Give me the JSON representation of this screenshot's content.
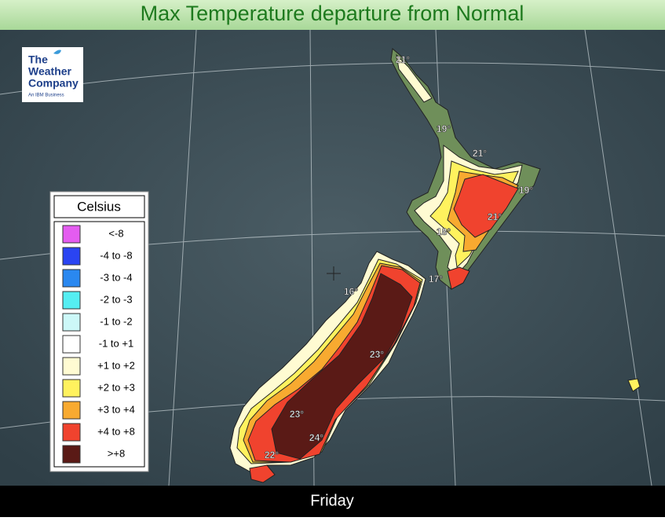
{
  "header": {
    "title": "Max Temperature departure from Normal"
  },
  "logo": {
    "line1": "The",
    "line2": "Weather",
    "line3": "Company",
    "tagline": "An IBM Business"
  },
  "legend": {
    "title": "Celsius",
    "items": [
      {
        "label": "<-8",
        "color": "#e45cf0"
      },
      {
        "label": "-4 to -8",
        "color": "#2a44f2"
      },
      {
        "label": "-3 to -4",
        "color": "#2a88f0"
      },
      {
        "label": "-2 to -3",
        "color": "#55eef2"
      },
      {
        "label": "-1 to -2",
        "color": "#ccf8f8"
      },
      {
        "label": "-1 to +1",
        "color": "#ffffff"
      },
      {
        "label": "+1 to +2",
        "color": "#fffbd2"
      },
      {
        "label": "+2 to +3",
        "color": "#fff25e"
      },
      {
        "label": "+3 to +4",
        "color": "#f8aa30"
      },
      {
        "label": "+4 to +8",
        "color": "#f0432e"
      },
      {
        "label": ">+8",
        "color": "#5a1a16"
      }
    ]
  },
  "map_labels": [
    "21°",
    "19°",
    "21°",
    "19°",
    "21°",
    "18°",
    "17°",
    "16°",
    "23°",
    "23°",
    "24°",
    "22°"
  ],
  "footer": {
    "day": "Friday"
  }
}
